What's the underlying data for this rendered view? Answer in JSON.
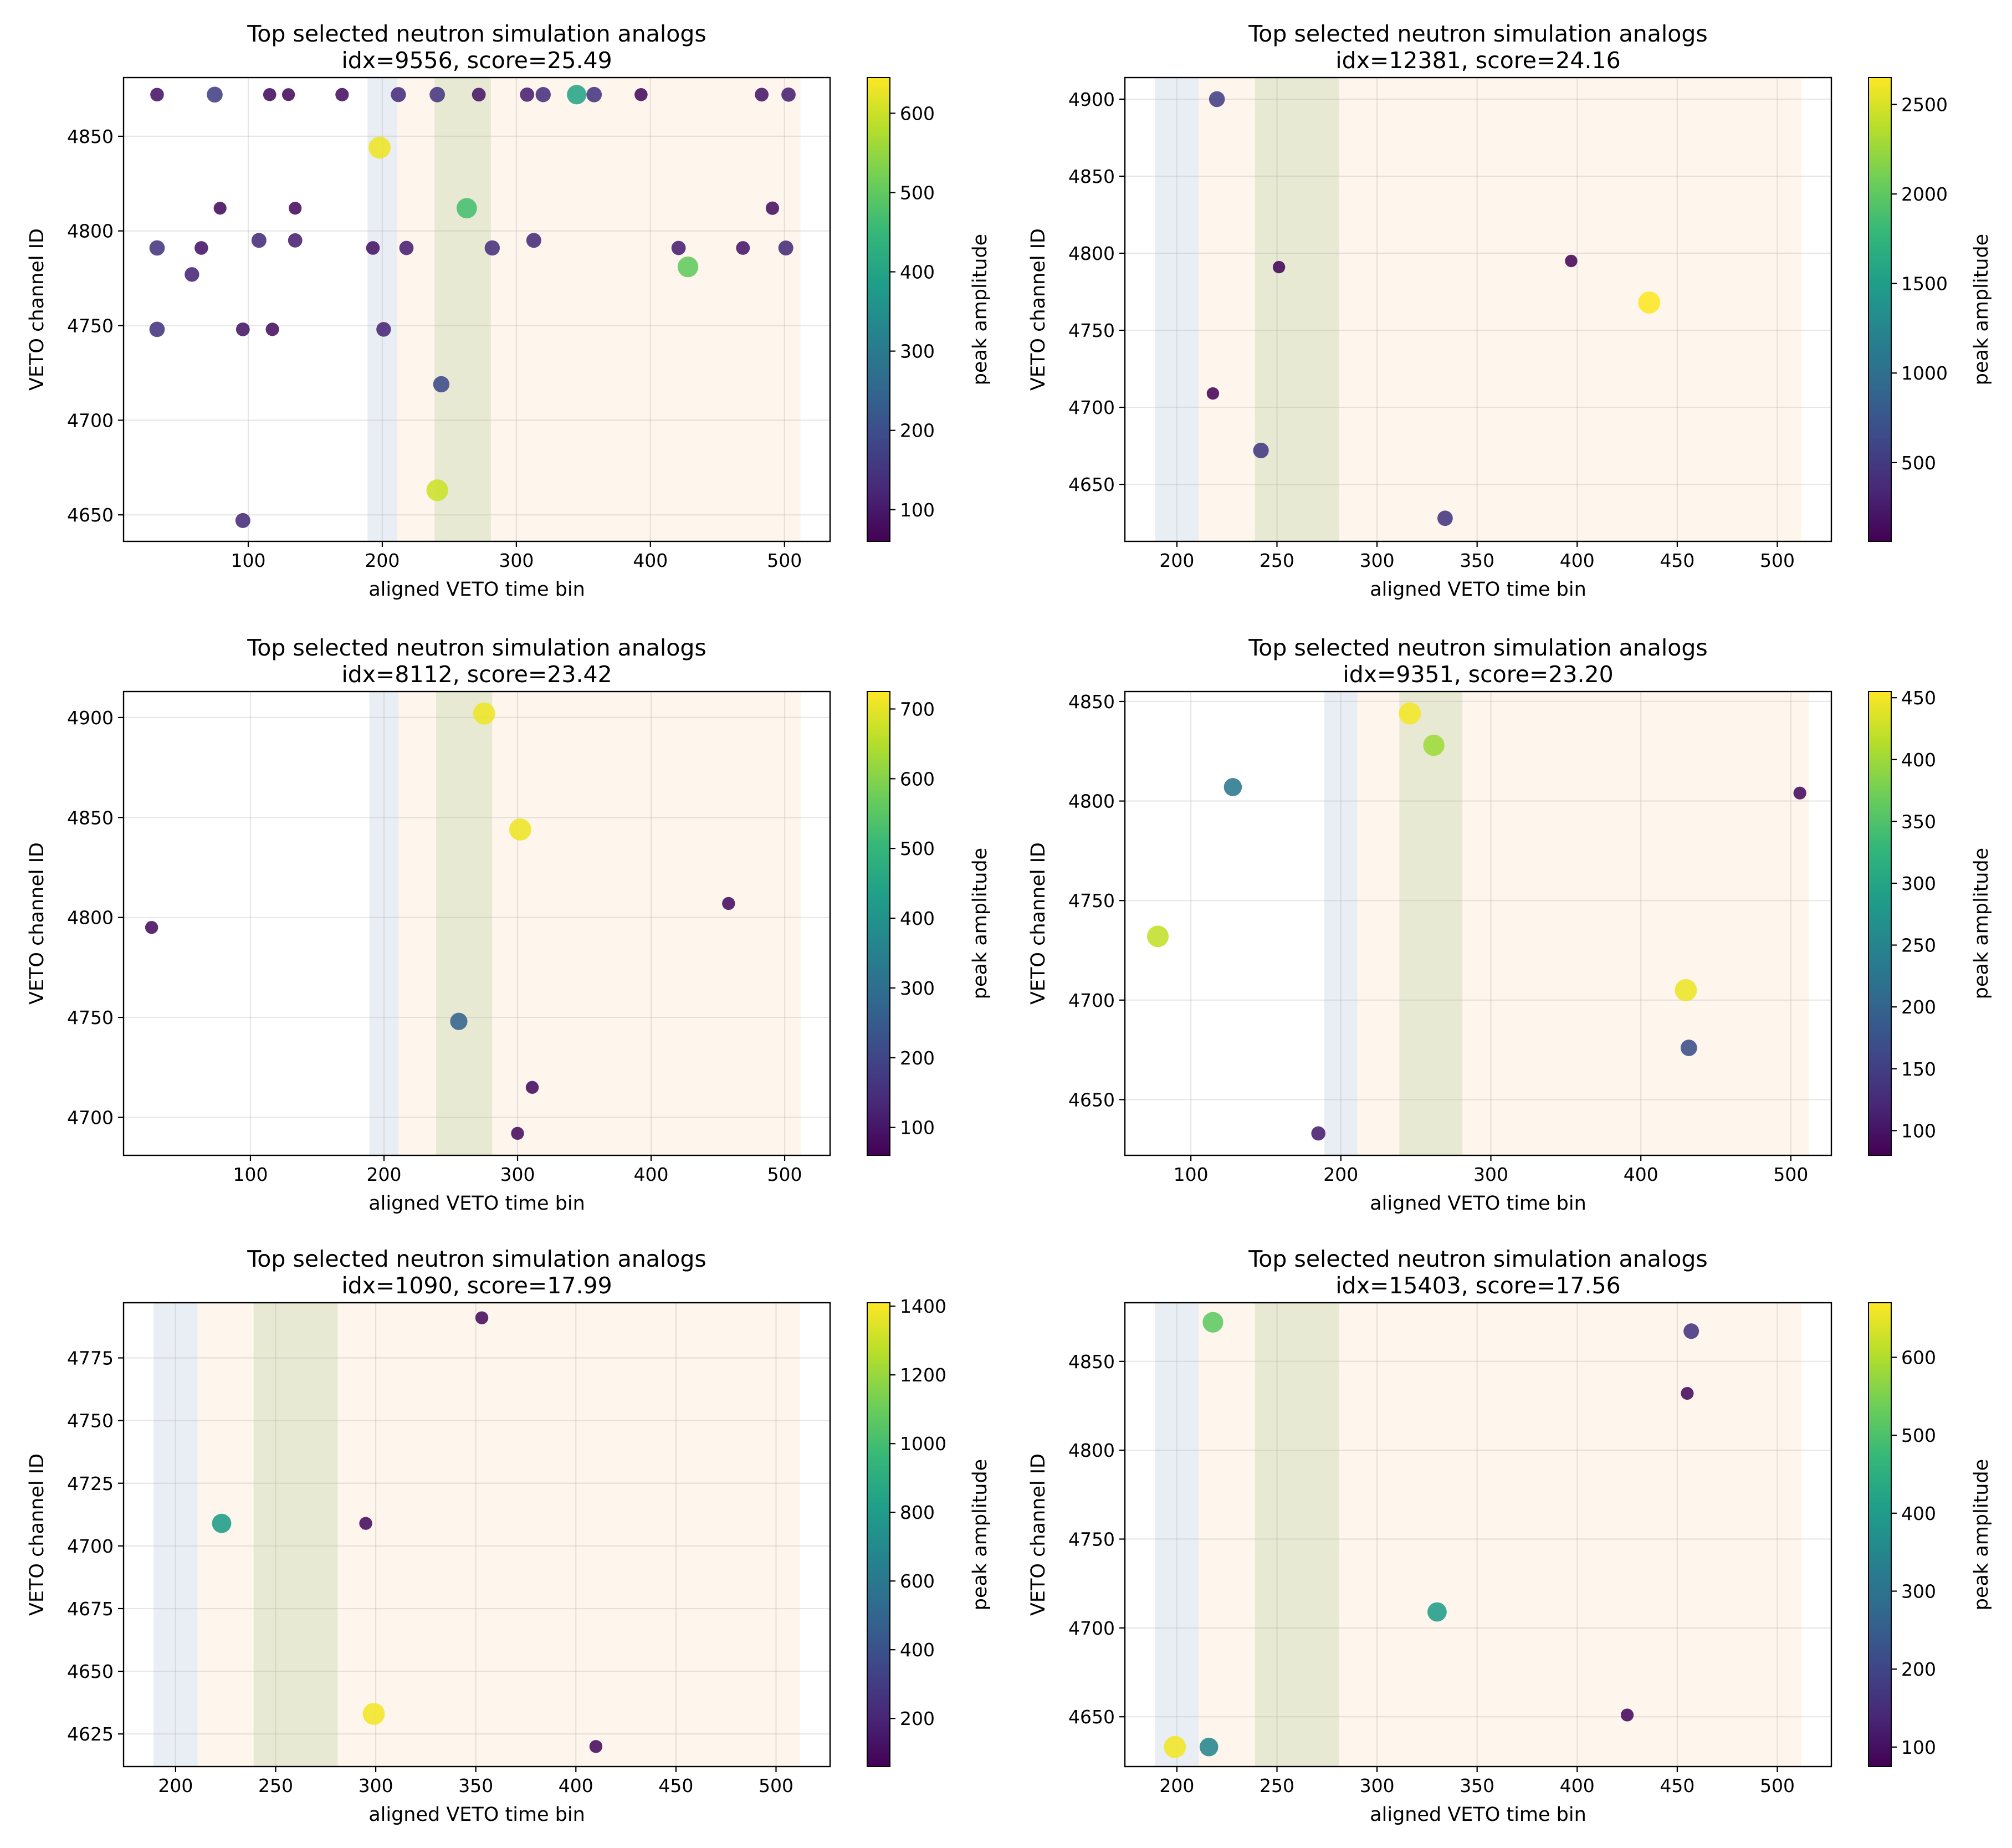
{
  "chart_data": [
    {
      "type": "scatter",
      "title": "Top selected neutron simulation analogs",
      "subtitle": "idx=9556, score=25.49",
      "xlabel": "aligned VETO time bin",
      "ylabel": "VETO channel ID",
      "colorbar_label": "peak amplitude",
      "xlim": [
        7,
        534
      ],
      "ylim": [
        4636,
        4881
      ],
      "xticks": [
        100,
        200,
        300,
        400,
        500
      ],
      "yticks": [
        4650,
        4700,
        4750,
        4800,
        4850
      ],
      "cticks": [
        100,
        200,
        300,
        400,
        500,
        600
      ],
      "clim": [
        60,
        645
      ],
      "grid": true,
      "points": [
        {
          "x": 32,
          "y": 4872,
          "v": 90
        },
        {
          "x": 75,
          "y": 4872,
          "v": 170
        },
        {
          "x": 116,
          "y": 4872,
          "v": 80
        },
        {
          "x": 130,
          "y": 4872,
          "v": 75
        },
        {
          "x": 170,
          "y": 4872,
          "v": 85
        },
        {
          "x": 212,
          "y": 4872,
          "v": 135
        },
        {
          "x": 241,
          "y": 4872,
          "v": 150
        },
        {
          "x": 272,
          "y": 4872,
          "v": 95
        },
        {
          "x": 308,
          "y": 4872,
          "v": 110
        },
        {
          "x": 320,
          "y": 4872,
          "v": 140
        },
        {
          "x": 345,
          "y": 4872,
          "v": 400
        },
        {
          "x": 358,
          "y": 4872,
          "v": 150
        },
        {
          "x": 393,
          "y": 4872,
          "v": 80
        },
        {
          "x": 483,
          "y": 4872,
          "v": 95
        },
        {
          "x": 503,
          "y": 4872,
          "v": 110
        },
        {
          "x": 198,
          "y": 4844,
          "v": 630
        },
        {
          "x": 79,
          "y": 4812,
          "v": 75
        },
        {
          "x": 135,
          "y": 4812,
          "v": 75
        },
        {
          "x": 263,
          "y": 4812,
          "v": 470
        },
        {
          "x": 491,
          "y": 4812,
          "v": 85
        },
        {
          "x": 32,
          "y": 4791,
          "v": 150
        },
        {
          "x": 65,
          "y": 4791,
          "v": 90
        },
        {
          "x": 108,
          "y": 4795,
          "v": 130
        },
        {
          "x": 135,
          "y": 4795,
          "v": 110
        },
        {
          "x": 193,
          "y": 4791,
          "v": 90
        },
        {
          "x": 218,
          "y": 4791,
          "v": 110
        },
        {
          "x": 282,
          "y": 4791,
          "v": 140
        },
        {
          "x": 313,
          "y": 4795,
          "v": 130
        },
        {
          "x": 428,
          "y": 4781,
          "v": 500
        },
        {
          "x": 421,
          "y": 4791,
          "v": 110
        },
        {
          "x": 469,
          "y": 4791,
          "v": 95
        },
        {
          "x": 501,
          "y": 4791,
          "v": 130
        },
        {
          "x": 58,
          "y": 4777,
          "v": 120
        },
        {
          "x": 32,
          "y": 4748,
          "v": 150
        },
        {
          "x": 96,
          "y": 4748,
          "v": 95
        },
        {
          "x": 118,
          "y": 4748,
          "v": 85
        },
        {
          "x": 201,
          "y": 4748,
          "v": 120
        },
        {
          "x": 244,
          "y": 4719,
          "v": 190
        },
        {
          "x": 241,
          "y": 4663,
          "v": 600
        },
        {
          "x": 96,
          "y": 4647,
          "v": 130
        }
      ]
    },
    {
      "type": "scatter",
      "title": "Top selected neutron simulation analogs",
      "subtitle": "idx=12381, score=24.16",
      "xlabel": "aligned VETO time bin",
      "ylabel": "VETO channel ID",
      "colorbar_label": "peak amplitude",
      "xlim": [
        174,
        527
      ],
      "ylim": [
        4613,
        4914
      ],
      "xticks": [
        200,
        250,
        300,
        350,
        400,
        450,
        500
      ],
      "yticks": [
        4650,
        4700,
        4750,
        4800,
        4850,
        4900
      ],
      "cticks": [
        500,
        1000,
        1500,
        2000,
        2500
      ],
      "clim": [
        60,
        2650
      ],
      "grid": true,
      "points": [
        {
          "x": 220,
          "y": 4900,
          "v": 550
        },
        {
          "x": 251,
          "y": 4791,
          "v": 100
        },
        {
          "x": 397,
          "y": 4795,
          "v": 100
        },
        {
          "x": 436,
          "y": 4768,
          "v": 2650
        },
        {
          "x": 218,
          "y": 4709,
          "v": 100
        },
        {
          "x": 242,
          "y": 4672,
          "v": 500
        },
        {
          "x": 334,
          "y": 4628,
          "v": 450
        }
      ]
    },
    {
      "type": "scatter",
      "title": "Top selected neutron simulation analogs",
      "subtitle": "idx=8112, score=23.42",
      "xlabel": "aligned VETO time bin",
      "ylabel": "VETO channel ID",
      "colorbar_label": "peak amplitude",
      "xlim": [
        5,
        534
      ],
      "ylim": [
        4681,
        4913
      ],
      "xticks": [
        100,
        200,
        300,
        400,
        500
      ],
      "yticks": [
        4700,
        4750,
        4800,
        4850,
        4900
      ],
      "cticks": [
        100,
        200,
        300,
        400,
        500,
        600,
        700
      ],
      "clim": [
        60,
        725
      ],
      "grid": true,
      "points": [
        {
          "x": 275,
          "y": 4902,
          "v": 710
        },
        {
          "x": 302,
          "y": 4844,
          "v": 710
        },
        {
          "x": 458,
          "y": 4807,
          "v": 80
        },
        {
          "x": 26,
          "y": 4795,
          "v": 80
        },
        {
          "x": 256,
          "y": 4748,
          "v": 270
        },
        {
          "x": 311,
          "y": 4715,
          "v": 80
        },
        {
          "x": 300,
          "y": 4692,
          "v": 80
        }
      ]
    },
    {
      "type": "scatter",
      "title": "Top selected neutron simulation analogs",
      "subtitle": "idx=9351, score=23.20",
      "xlabel": "aligned VETO time bin",
      "ylabel": "VETO channel ID",
      "colorbar_label": "peak amplitude",
      "xlim": [
        56,
        527
      ],
      "ylim": [
        4622,
        4855
      ],
      "xticks": [
        100,
        200,
        300,
        400,
        500
      ],
      "yticks": [
        4650,
        4700,
        4750,
        4800,
        4850
      ],
      "cticks": [
        100,
        150,
        200,
        250,
        300,
        350,
        400,
        450
      ],
      "clim": [
        80,
        455
      ],
      "grid": true,
      "points": [
        {
          "x": 246,
          "y": 4844,
          "v": 450
        },
        {
          "x": 262,
          "y": 4828,
          "v": 400
        },
        {
          "x": 128,
          "y": 4807,
          "v": 230
        },
        {
          "x": 506,
          "y": 4804,
          "v": 90
        },
        {
          "x": 78,
          "y": 4732,
          "v": 420
        },
        {
          "x": 430,
          "y": 4705,
          "v": 445
        },
        {
          "x": 432,
          "y": 4676,
          "v": 170
        },
        {
          "x": 185,
          "y": 4633,
          "v": 110
        }
      ]
    },
    {
      "type": "scatter",
      "title": "Top selected neutron simulation analogs",
      "subtitle": "idx=1090, score=17.99",
      "xlabel": "aligned VETO time bin",
      "ylabel": "VETO channel ID",
      "colorbar_label": "peak amplitude",
      "xlim": [
        174,
        527
      ],
      "ylim": [
        4612,
        4797
      ],
      "xticks": [
        200,
        250,
        300,
        350,
        400,
        450,
        500
      ],
      "yticks": [
        4625,
        4650,
        4675,
        4700,
        4725,
        4750,
        4775
      ],
      "cticks": [
        200,
        400,
        600,
        800,
        1000,
        1200,
        1400
      ],
      "clim": [
        60,
        1410
      ],
      "grid": true,
      "points": [
        {
          "x": 353,
          "y": 4791,
          "v": 100
        },
        {
          "x": 223,
          "y": 4709,
          "v": 800
        },
        {
          "x": 295,
          "y": 4709,
          "v": 100
        },
        {
          "x": 299,
          "y": 4633,
          "v": 1390
        },
        {
          "x": 410,
          "y": 4620,
          "v": 100
        }
      ]
    },
    {
      "type": "scatter",
      "title": "Top selected neutron simulation analogs",
      "subtitle": "idx=15403, score=17.56",
      "xlabel": "aligned VETO time bin",
      "ylabel": "VETO channel ID",
      "colorbar_label": "peak amplitude",
      "xlim": [
        174,
        527
      ],
      "ylim": [
        4622,
        4883
      ],
      "xticks": [
        200,
        250,
        300,
        350,
        400,
        450,
        500
      ],
      "yticks": [
        4650,
        4700,
        4750,
        4800,
        4850
      ],
      "cticks": [
        100,
        200,
        300,
        400,
        500,
        600
      ],
      "clim": [
        75,
        670
      ],
      "grid": true,
      "points": [
        {
          "x": 218,
          "y": 4872,
          "v": 520
        },
        {
          "x": 457,
          "y": 4867,
          "v": 170
        },
        {
          "x": 455,
          "y": 4832,
          "v": 90
        },
        {
          "x": 330,
          "y": 4709,
          "v": 400
        },
        {
          "x": 425,
          "y": 4651,
          "v": 90
        },
        {
          "x": 199,
          "y": 4633,
          "v": 660
        },
        {
          "x": 216,
          "y": 4633,
          "v": 350
        }
      ]
    }
  ]
}
